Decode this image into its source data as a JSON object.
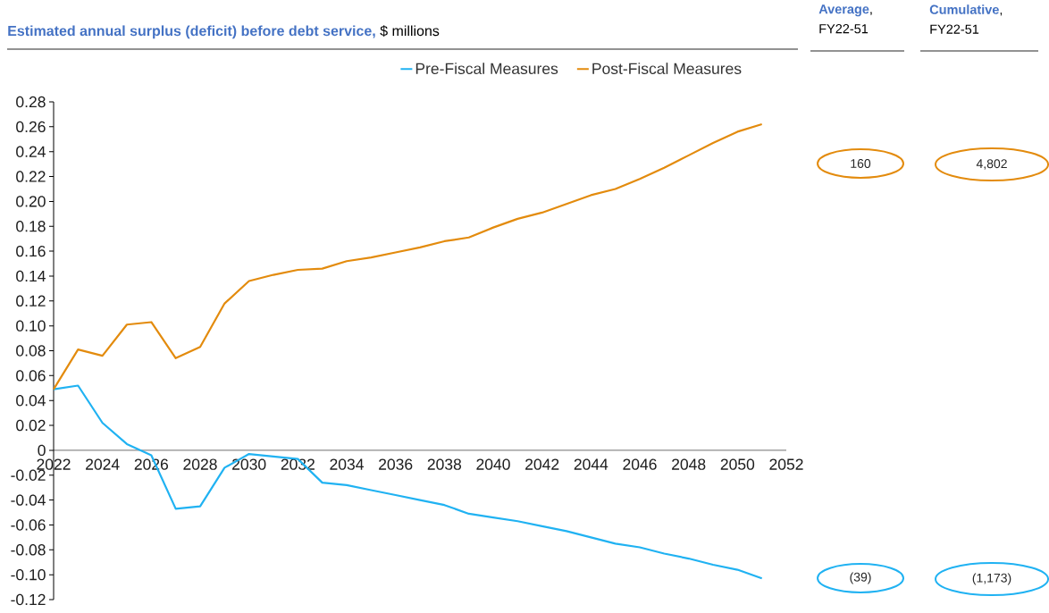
{
  "chart_data": {
    "type": "line",
    "title": "**Estimated annual surplus (deficit) before debt service,** $ millions",
    "x": [
      2022,
      2023,
      2024,
      2025,
      2026,
      2027,
      2028,
      2029,
      2030,
      2031,
      2032,
      2033,
      2034,
      2035,
      2036,
      2037,
      2038,
      2039,
      2040,
      2041,
      2042,
      2043,
      2044,
      2045,
      2046,
      2047,
      2048,
      2049,
      2050,
      2051
    ],
    "series": [
      {
        "name": "Pre-Fiscal Measures",
        "color": "#20b2f2",
        "values": [
          0.049,
          0.052,
          0.022,
          0.005,
          -0.004,
          -0.047,
          -0.045,
          -0.014,
          -0.003,
          -0.005,
          -0.007,
          -0.026,
          -0.028,
          -0.032,
          -0.036,
          -0.04,
          -0.044,
          -0.051,
          -0.054,
          -0.057,
          -0.061,
          -0.065,
          -0.07,
          -0.075,
          -0.078,
          -0.083,
          -0.087,
          -0.092,
          -0.096,
          -0.103
        ]
      },
      {
        "name": "Post-Fiscal Measures",
        "color": "#e38b0d",
        "values": [
          0.049,
          0.081,
          0.076,
          0.101,
          0.103,
          0.074,
          0.083,
          0.118,
          0.136,
          0.141,
          0.145,
          0.146,
          0.152,
          0.155,
          0.159,
          0.163,
          0.168,
          0.171,
          0.179,
          0.186,
          0.191,
          0.198,
          0.205,
          0.21,
          0.218,
          0.227,
          0.237,
          0.247,
          0.256,
          0.262
        ]
      }
    ],
    "xlim": [
      2022,
      2052
    ],
    "xticks": [
      2022,
      2024,
      2026,
      2028,
      2030,
      2032,
      2034,
      2036,
      2038,
      2040,
      2042,
      2044,
      2046,
      2048,
      2050,
      2052
    ],
    "ylim": [
      -0.12,
      0.28
    ],
    "yticks": [
      -0.12,
      {
        "value": -0.1,
        "label": "-0.10"
      },
      -0.08,
      -0.06,
      -0.04,
      -0.02,
      0,
      0.02,
      0.04,
      0.06,
      0.08,
      {
        "value": 0.1,
        "label": "0.10"
      },
      0.12,
      0.14,
      0.16,
      0.18,
      {
        "value": 0.2,
        "label": "0.20"
      },
      0.22,
      0.24,
      0.26,
      0.28
    ],
    "legend": "top",
    "annotations": [
      "**Average**, FY22-51",
      "**Cumulative**, FY22-51",
      "160",
      "4,802",
      "(39)",
      "(1,173)"
    ]
  }
}
